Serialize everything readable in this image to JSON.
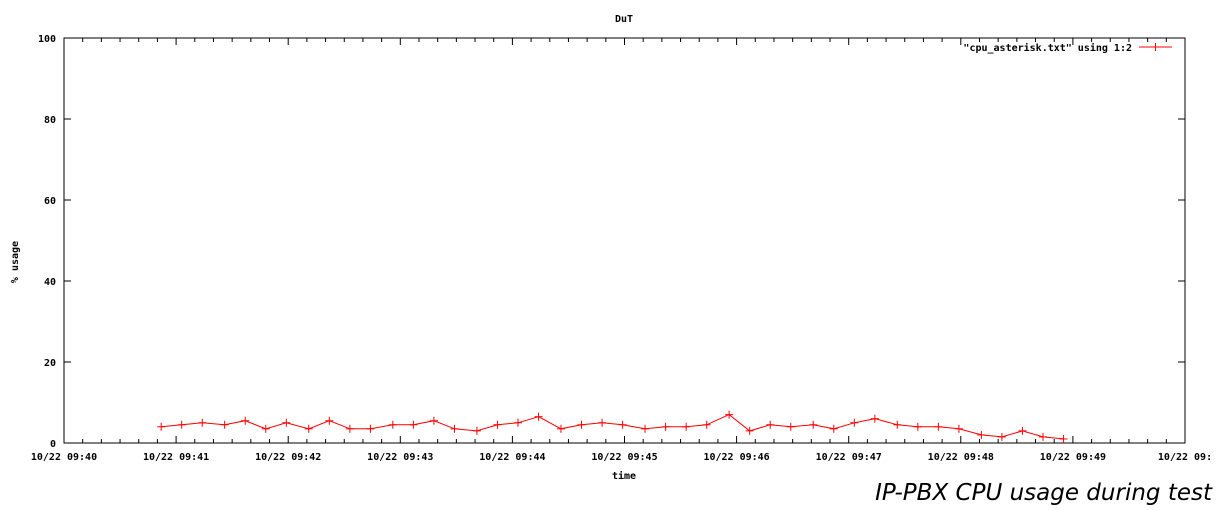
{
  "caption": "IP-PBX CPU usage during test",
  "chart_data": {
    "type": "line",
    "title": "DuT",
    "xlabel": "time",
    "ylabel": "% usage",
    "ylim": [
      0,
      100
    ],
    "xlim": [
      "10/22 09:40",
      "10/22 09:50"
    ],
    "yticks": [
      0,
      20,
      40,
      60,
      80,
      100
    ],
    "xtick_labels": [
      "10/22 09:40",
      "10/22 09:41",
      "10/22 09:42",
      "10/22 09:43",
      "10/22 09:44",
      "10/22 09:45",
      "10/22 09:46",
      "10/22 09:47",
      "10/22 09:48",
      "10/22 09:49",
      "10/22 09:"
    ],
    "grid": false,
    "legend_position": "top-right",
    "color": "#ff0000",
    "series": [
      {
        "name": "\"cpu_asterisk.txt\" using 1:2",
        "x": [
          "09:40:52",
          "09:41:03",
          "09:41:14",
          "09:41:26",
          "09:41:37",
          "09:41:48",
          "09:41:59",
          "09:42:11",
          "09:42:22",
          "09:42:33",
          "09:42:44",
          "09:42:56",
          "09:43:07",
          "09:43:18",
          "09:43:29",
          "09:43:41",
          "09:43:52",
          "09:44:03",
          "09:44:14",
          "09:44:26",
          "09:44:37",
          "09:44:48",
          "09:44:59",
          "09:45:11",
          "09:45:22",
          "09:45:33",
          "09:45:44",
          "09:45:56",
          "09:46:07",
          "09:46:18",
          "09:46:29",
          "09:46:41",
          "09:46:52",
          "09:47:03",
          "09:47:14",
          "09:47:26",
          "09:47:37",
          "09:47:48",
          "09:47:59",
          "09:48:11",
          "09:48:22",
          "09:48:33",
          "09:48:44",
          "09:48:55"
        ],
        "values": [
          4,
          4.5,
          5,
          4.5,
          5.5,
          3.5,
          5,
          3.5,
          5.5,
          3.5,
          3.5,
          4.5,
          4.5,
          5.5,
          3.5,
          3,
          4.5,
          5,
          6.5,
          3.5,
          4.5,
          5,
          4.5,
          3.5,
          4,
          4,
          4.5,
          7,
          3,
          4.5,
          4,
          4.5,
          3.5,
          5,
          6,
          4.5,
          4,
          4,
          3.5,
          2,
          1.5,
          3,
          1.5,
          1
        ]
      }
    ]
  }
}
